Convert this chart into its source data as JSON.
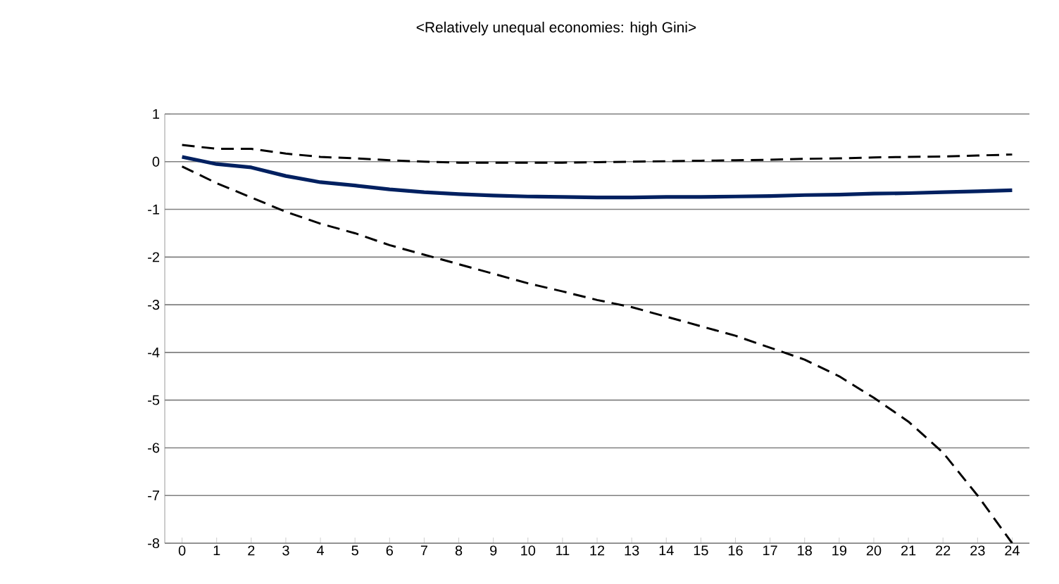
{
  "chart_data": {
    "type": "line",
    "title": "<Relatively unequal economies: high Gini>",
    "categories": [
      "0",
      "1",
      "2",
      "3",
      "4",
      "5",
      "6",
      "7",
      "8",
      "9",
      "10",
      "11",
      "12",
      "13",
      "14",
      "15",
      "16",
      "17",
      "18",
      "19",
      "20",
      "21",
      "22",
      "23",
      "24"
    ],
    "series": [
      {
        "color": "#002060",
        "line_style": "solid",
        "values": [
          0.1,
          -0.05,
          -0.12,
          -0.3,
          -0.43,
          -0.5,
          -0.58,
          -0.64,
          -0.68,
          -0.71,
          -0.73,
          -0.74,
          -0.75,
          -0.75,
          -0.74,
          -0.74,
          -0.73,
          -0.72,
          -0.7,
          -0.69,
          -0.67,
          -0.66,
          -0.64,
          -0.62,
          -0.6
        ]
      },
      {
        "color": "#000000",
        "line_style": "dashed",
        "values": [
          0.35,
          0.27,
          0.27,
          0.17,
          0.1,
          0.07,
          0.03,
          0.0,
          -0.02,
          -0.02,
          -0.02,
          -0.02,
          -0.01,
          0.0,
          0.01,
          0.02,
          0.03,
          0.04,
          0.06,
          0.07,
          0.09,
          0.1,
          0.11,
          0.13,
          0.15
        ]
      },
      {
        "color": "#000000",
        "line_style": "dashed",
        "values": [
          -0.1,
          -0.45,
          -0.75,
          -1.05,
          -1.3,
          -1.5,
          -1.75,
          -1.95,
          -2.15,
          -2.35,
          -2.55,
          -2.72,
          -2.9,
          -3.05,
          -3.25,
          -3.45,
          -3.65,
          -3.9,
          -4.15,
          -4.5,
          -4.95,
          -5.45,
          -6.1,
          -7.0,
          -8.0
        ]
      }
    ],
    "ylim": [
      -8,
      1
    ],
    "yticks": [
      1,
      0,
      -1,
      -2,
      -3,
      -4,
      -5,
      -6,
      -7,
      -8
    ],
    "grid": "y",
    "marker": "none"
  }
}
